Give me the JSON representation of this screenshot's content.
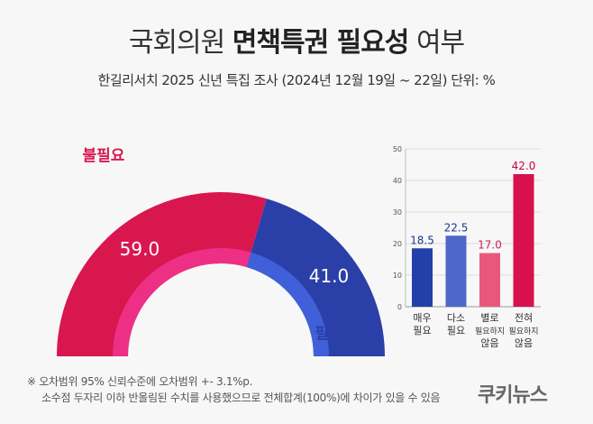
{
  "title": {
    "normal": "국회의원 ",
    "bold": "면책특권 필요성",
    "suffix": " 여부"
  },
  "subtitle": "한길리서치 2025 신년 특집 조사 (2024년 12월 19일 ~ 22일) 단위: %",
  "chart_data": [
    {
      "type": "pie",
      "style": "half-donut",
      "categories": [
        "불필요",
        "필요"
      ],
      "values": [
        59.0,
        41.0
      ],
      "colors": [
        "#d8174f",
        "#2b3fa8"
      ]
    },
    {
      "type": "bar",
      "categories": [
        [
          "매우",
          "필요"
        ],
        [
          "다소",
          "필요"
        ],
        [
          "별로",
          "필요하지",
          "않음"
        ],
        [
          "전혀",
          "필요하지",
          "않음"
        ]
      ],
      "values": [
        18.5,
        22.5,
        17.0,
        42.0
      ],
      "ylim": [
        0,
        50
      ],
      "yticks": [
        0,
        10,
        20,
        30,
        40,
        50
      ],
      "colors": [
        "#2240a8",
        "#4d68c8",
        "#e8587a",
        "#d8104e"
      ],
      "label_colors": [
        "#1f3590",
        "#1f3590",
        "#d01f55",
        "#c8003f"
      ],
      "grid": true
    }
  ],
  "notes": [
    "※ 오차범위 95% 신뢰수준에 오차범위 +- 3.1%p.",
    "소수점 두자리 이하 반올림된 수치를 사용했으므로 전체합계(100%)에 차이가 있을 수 있음"
  ],
  "logo": "쿠키뉴스"
}
